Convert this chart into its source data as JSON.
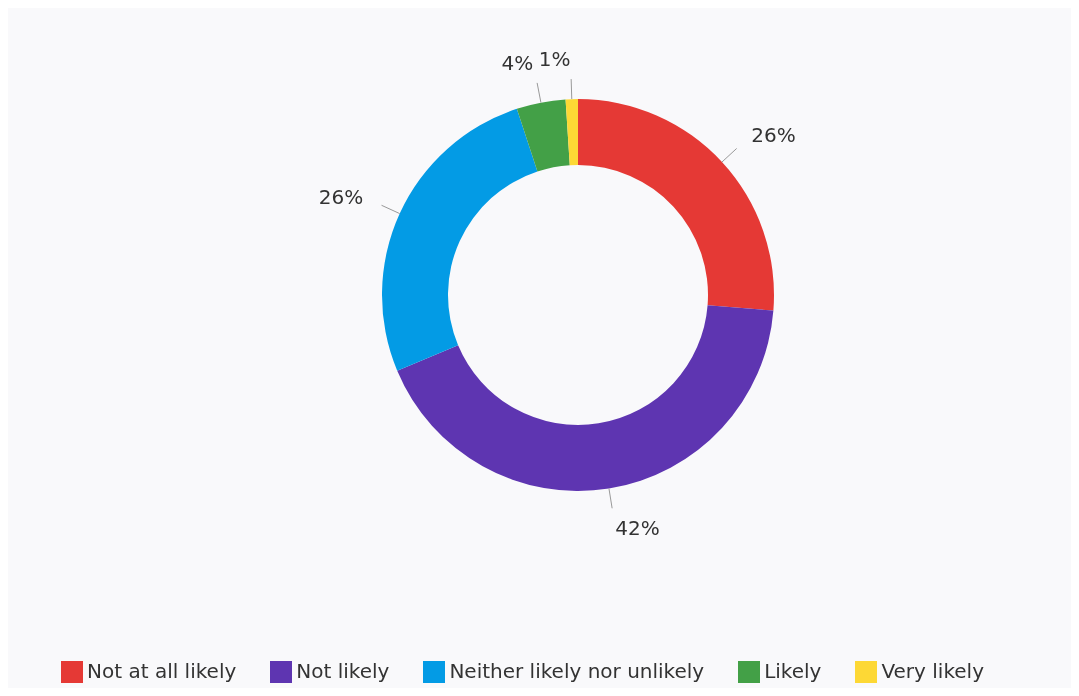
{
  "chart_data": {
    "type": "donut",
    "categories": [
      "Not at all likely",
      "Not likely",
      "Neither likely nor unlikely",
      "Likely",
      "Very likely"
    ],
    "values": [
      26,
      42,
      26,
      4,
      1
    ],
    "value_labels": [
      "26%",
      "42%",
      "26%",
      "4%",
      "1%"
    ],
    "colors": [
      "#e53935",
      "#5e35b1",
      "#039be5",
      "#43a047",
      "#fdd835"
    ],
    "legend": "bottom"
  }
}
